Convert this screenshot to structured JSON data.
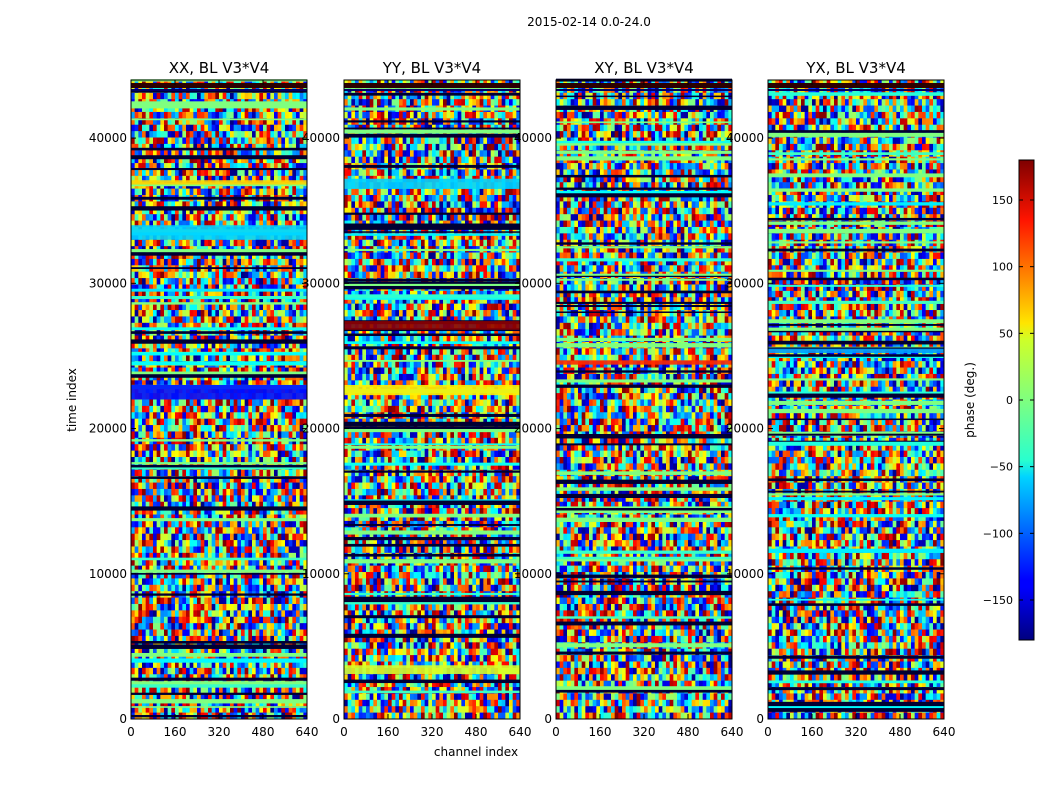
{
  "figure_title": "2015-02-14 0.0-24.0",
  "chart_data": {
    "type": "heatmap",
    "shared": {
      "xlabel": "channel index",
      "ylabel": "time index",
      "xlim": [
        0,
        640
      ],
      "ylim": [
        0,
        44000
      ],
      "xticks": [
        0,
        160,
        320,
        480,
        640
      ],
      "yticks": [
        0,
        10000,
        20000,
        30000,
        40000
      ],
      "colormap": "jet",
      "colorbar": {
        "label": "phase (deg.)",
        "range": [
          -180,
          180
        ],
        "ticks": [
          -150,
          -100,
          -50,
          0,
          50,
          100,
          150
        ]
      }
    },
    "panels": [
      {
        "title": "XX, BL V3*V4",
        "bands": [
          {
            "t0": 22000,
            "t1": 23000,
            "phase": -130,
            "note": "dominant blue band"
          },
          {
            "t0": 33000,
            "t1": 34000,
            "phase": -60
          },
          {
            "t0": 36800,
            "t1": 37100,
            "phase": 60
          }
        ]
      },
      {
        "title": "YY, BL V3*V4",
        "bands": [
          {
            "t0": 26800,
            "t1": 27400,
            "phase": 175,
            "note": "dark red band"
          },
          {
            "t0": 22300,
            "t1": 23000,
            "phase": 50
          },
          {
            "t0": 36500,
            "t1": 37200,
            "phase": -60
          },
          {
            "t0": 3100,
            "t1": 3700,
            "phase": 30
          }
        ]
      },
      {
        "title": "XY, BL V3*V4",
        "bands": [
          {
            "t0": 24400,
            "t1": 24700,
            "phase": 120
          }
        ]
      },
      {
        "title": "YX, BL V3*V4",
        "bands": [
          {
            "t0": 25200,
            "t1": 25500,
            "phase": -80
          }
        ]
      }
    ]
  }
}
